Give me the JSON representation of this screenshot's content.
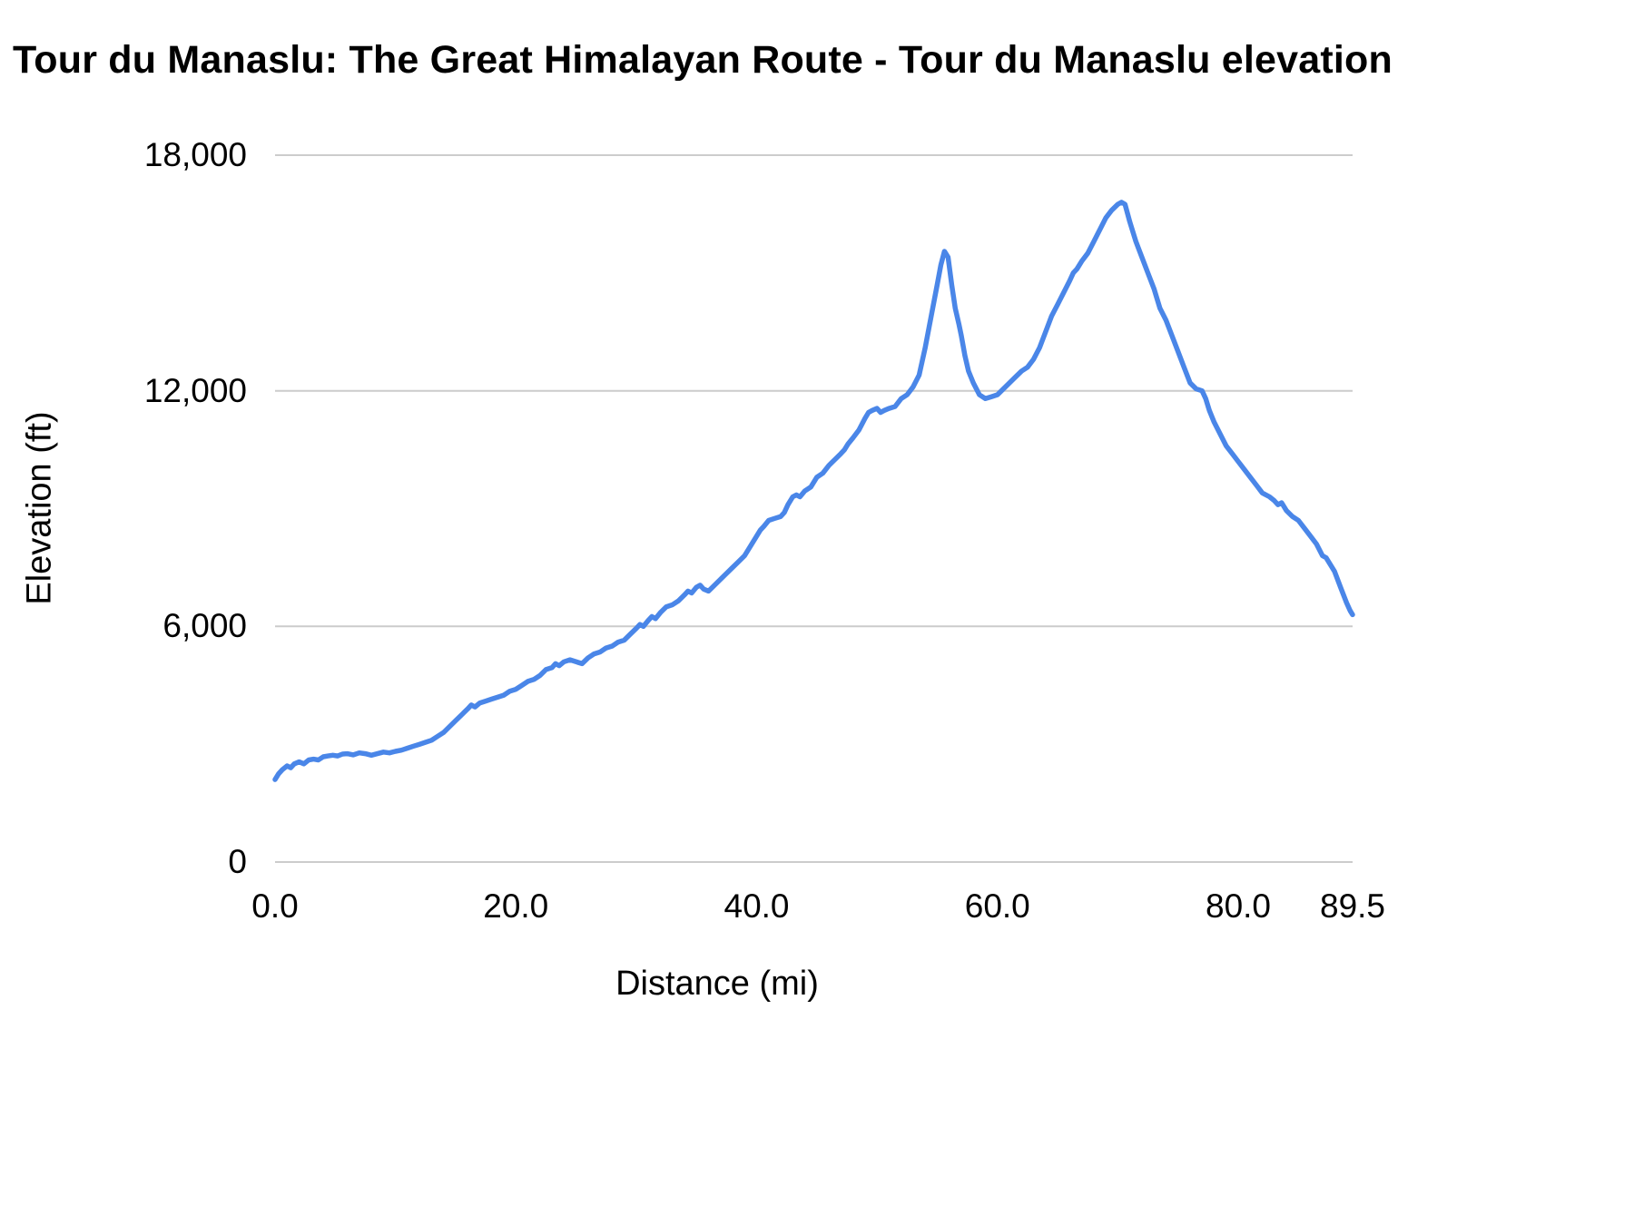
{
  "chart_data": {
    "type": "line",
    "title": "Tour du Manaslu: The Great Himalayan Route - Tour du Manaslu elevation",
    "xlabel": "Distance (mi)",
    "ylabel": "Elevation (ft)",
    "xlim": [
      0,
      89.5
    ],
    "ylim": [
      0,
      18000
    ],
    "grid": "horizontal-only",
    "legend": "none",
    "line_color": "#4a86e8",
    "grid_color": "#cccccc",
    "text_color": "#000000",
    "xticks": [
      {
        "value": 0.0,
        "label": "0.0"
      },
      {
        "value": 20.0,
        "label": "20.0"
      },
      {
        "value": 40.0,
        "label": "40.0"
      },
      {
        "value": 60.0,
        "label": "60.0"
      },
      {
        "value": 80.0,
        "label": "80.0"
      },
      {
        "value": 89.5,
        "label": "89.5"
      }
    ],
    "yticks": [
      {
        "value": 0,
        "label": "0"
      },
      {
        "value": 6000,
        "label": "6,000"
      },
      {
        "value": 12000,
        "label": "12,000"
      },
      {
        "value": 18000,
        "label": "18,000"
      }
    ],
    "series": [
      {
        "name": "Tour du Manaslu elevation",
        "units": {
          "x": "mi",
          "y": "ft"
        },
        "points": [
          [
            0.0,
            2100
          ],
          [
            0.3,
            2250
          ],
          [
            0.6,
            2350
          ],
          [
            1.0,
            2450
          ],
          [
            1.3,
            2400
          ],
          [
            1.6,
            2500
          ],
          [
            2.0,
            2550
          ],
          [
            2.4,
            2500
          ],
          [
            2.8,
            2600
          ],
          [
            3.2,
            2620
          ],
          [
            3.6,
            2600
          ],
          [
            4.0,
            2680
          ],
          [
            4.4,
            2700
          ],
          [
            4.8,
            2720
          ],
          [
            5.2,
            2700
          ],
          [
            5.6,
            2750
          ],
          [
            6.0,
            2760
          ],
          [
            6.5,
            2730
          ],
          [
            7.0,
            2780
          ],
          [
            7.5,
            2760
          ],
          [
            8.0,
            2720
          ],
          [
            8.5,
            2760
          ],
          [
            9.0,
            2800
          ],
          [
            9.5,
            2780
          ],
          [
            10.0,
            2820
          ],
          [
            10.5,
            2850
          ],
          [
            11.0,
            2900
          ],
          [
            11.5,
            2950
          ],
          [
            12.0,
            3000
          ],
          [
            12.5,
            3050
          ],
          [
            13.0,
            3100
          ],
          [
            13.5,
            3200
          ],
          [
            14.0,
            3300
          ],
          [
            14.5,
            3450
          ],
          [
            15.0,
            3600
          ],
          [
            15.5,
            3750
          ],
          [
            16.0,
            3900
          ],
          [
            16.3,
            4000
          ],
          [
            16.6,
            3950
          ],
          [
            17.0,
            4050
          ],
          [
            17.5,
            4100
          ],
          [
            18.0,
            4150
          ],
          [
            18.5,
            4200
          ],
          [
            19.0,
            4250
          ],
          [
            19.5,
            4350
          ],
          [
            20.0,
            4400
          ],
          [
            20.5,
            4500
          ],
          [
            21.0,
            4600
          ],
          [
            21.5,
            4650
          ],
          [
            22.0,
            4750
          ],
          [
            22.5,
            4900
          ],
          [
            23.0,
            4950
          ],
          [
            23.3,
            5050
          ],
          [
            23.6,
            5000
          ],
          [
            24.0,
            5100
          ],
          [
            24.5,
            5150
          ],
          [
            25.0,
            5100
          ],
          [
            25.5,
            5050
          ],
          [
            26.0,
            5200
          ],
          [
            26.5,
            5300
          ],
          [
            27.0,
            5350
          ],
          [
            27.5,
            5450
          ],
          [
            28.0,
            5500
          ],
          [
            28.5,
            5600
          ],
          [
            29.0,
            5650
          ],
          [
            29.5,
            5800
          ],
          [
            30.0,
            5950
          ],
          [
            30.3,
            6050
          ],
          [
            30.6,
            6000
          ],
          [
            31.0,
            6150
          ],
          [
            31.3,
            6250
          ],
          [
            31.6,
            6200
          ],
          [
            32.0,
            6350
          ],
          [
            32.5,
            6500
          ],
          [
            33.0,
            6550
          ],
          [
            33.5,
            6650
          ],
          [
            34.0,
            6800
          ],
          [
            34.3,
            6900
          ],
          [
            34.6,
            6850
          ],
          [
            35.0,
            7000
          ],
          [
            35.3,
            7050
          ],
          [
            35.6,
            6950
          ],
          [
            36.0,
            6900
          ],
          [
            36.5,
            7050
          ],
          [
            37.0,
            7200
          ],
          [
            37.5,
            7350
          ],
          [
            38.0,
            7500
          ],
          [
            38.5,
            7650
          ],
          [
            39.0,
            7800
          ],
          [
            39.5,
            8050
          ],
          [
            40.0,
            8300
          ],
          [
            40.3,
            8450
          ],
          [
            40.6,
            8550
          ],
          [
            41.0,
            8700
          ],
          [
            41.5,
            8750
          ],
          [
            42.0,
            8800
          ],
          [
            42.3,
            8900
          ],
          [
            42.6,
            9100
          ],
          [
            43.0,
            9300
          ],
          [
            43.3,
            9350
          ],
          [
            43.6,
            9300
          ],
          [
            44.0,
            9450
          ],
          [
            44.5,
            9550
          ],
          [
            45.0,
            9800
          ],
          [
            45.5,
            9900
          ],
          [
            46.0,
            10100
          ],
          [
            46.5,
            10250
          ],
          [
            47.0,
            10400
          ],
          [
            47.3,
            10500
          ],
          [
            47.6,
            10650
          ],
          [
            48.0,
            10800
          ],
          [
            48.5,
            11000
          ],
          [
            49.0,
            11300
          ],
          [
            49.3,
            11450
          ],
          [
            49.6,
            11500
          ],
          [
            50.0,
            11550
          ],
          [
            50.3,
            11450
          ],
          [
            50.6,
            11500
          ],
          [
            51.0,
            11550
          ],
          [
            51.5,
            11600
          ],
          [
            52.0,
            11800
          ],
          [
            52.5,
            11900
          ],
          [
            53.0,
            12100
          ],
          [
            53.5,
            12400
          ],
          [
            54.0,
            13100
          ],
          [
            54.5,
            13900
          ],
          [
            55.0,
            14700
          ],
          [
            55.3,
            15200
          ],
          [
            55.6,
            15550
          ],
          [
            55.9,
            15400
          ],
          [
            56.2,
            14700
          ],
          [
            56.5,
            14100
          ],
          [
            56.8,
            13700
          ],
          [
            57.0,
            13400
          ],
          [
            57.3,
            12900
          ],
          [
            57.6,
            12500
          ],
          [
            58.0,
            12200
          ],
          [
            58.5,
            11900
          ],
          [
            59.0,
            11800
          ],
          [
            59.5,
            11850
          ],
          [
            60.0,
            11900
          ],
          [
            60.5,
            12050
          ],
          [
            61.0,
            12200
          ],
          [
            61.5,
            12350
          ],
          [
            62.0,
            12500
          ],
          [
            62.5,
            12600
          ],
          [
            63.0,
            12800
          ],
          [
            63.5,
            13100
          ],
          [
            64.0,
            13500
          ],
          [
            64.5,
            13900
          ],
          [
            65.0,
            14200
          ],
          [
            65.5,
            14500
          ],
          [
            66.0,
            14800
          ],
          [
            66.3,
            15000
          ],
          [
            66.6,
            15100
          ],
          [
            67.0,
            15300
          ],
          [
            67.5,
            15500
          ],
          [
            68.0,
            15800
          ],
          [
            68.5,
            16100
          ],
          [
            69.0,
            16400
          ],
          [
            69.5,
            16600
          ],
          [
            70.0,
            16750
          ],
          [
            70.3,
            16800
          ],
          [
            70.6,
            16750
          ],
          [
            71.0,
            16300
          ],
          [
            71.5,
            15800
          ],
          [
            72.0,
            15400
          ],
          [
            72.5,
            15000
          ],
          [
            73.0,
            14600
          ],
          [
            73.5,
            14100
          ],
          [
            74.0,
            13800
          ],
          [
            74.5,
            13400
          ],
          [
            75.0,
            13000
          ],
          [
            75.5,
            12600
          ],
          [
            76.0,
            12200
          ],
          [
            76.5,
            12050
          ],
          [
            77.0,
            12000
          ],
          [
            77.3,
            11800
          ],
          [
            77.6,
            11500
          ],
          [
            78.0,
            11200
          ],
          [
            78.5,
            10900
          ],
          [
            79.0,
            10600
          ],
          [
            79.5,
            10400
          ],
          [
            80.0,
            10200
          ],
          [
            80.5,
            10000
          ],
          [
            81.0,
            9800
          ],
          [
            81.5,
            9600
          ],
          [
            82.0,
            9400
          ],
          [
            82.3,
            9350
          ],
          [
            82.6,
            9300
          ],
          [
            83.0,
            9200
          ],
          [
            83.3,
            9100
          ],
          [
            83.6,
            9150
          ],
          [
            84.0,
            8950
          ],
          [
            84.5,
            8800
          ],
          [
            85.0,
            8700
          ],
          [
            85.5,
            8500
          ],
          [
            86.0,
            8300
          ],
          [
            86.5,
            8100
          ],
          [
            87.0,
            7800
          ],
          [
            87.3,
            7750
          ],
          [
            87.6,
            7600
          ],
          [
            88.0,
            7400
          ],
          [
            88.5,
            7000
          ],
          [
            89.0,
            6600
          ],
          [
            89.3,
            6400
          ],
          [
            89.5,
            6300
          ]
        ]
      }
    ]
  }
}
